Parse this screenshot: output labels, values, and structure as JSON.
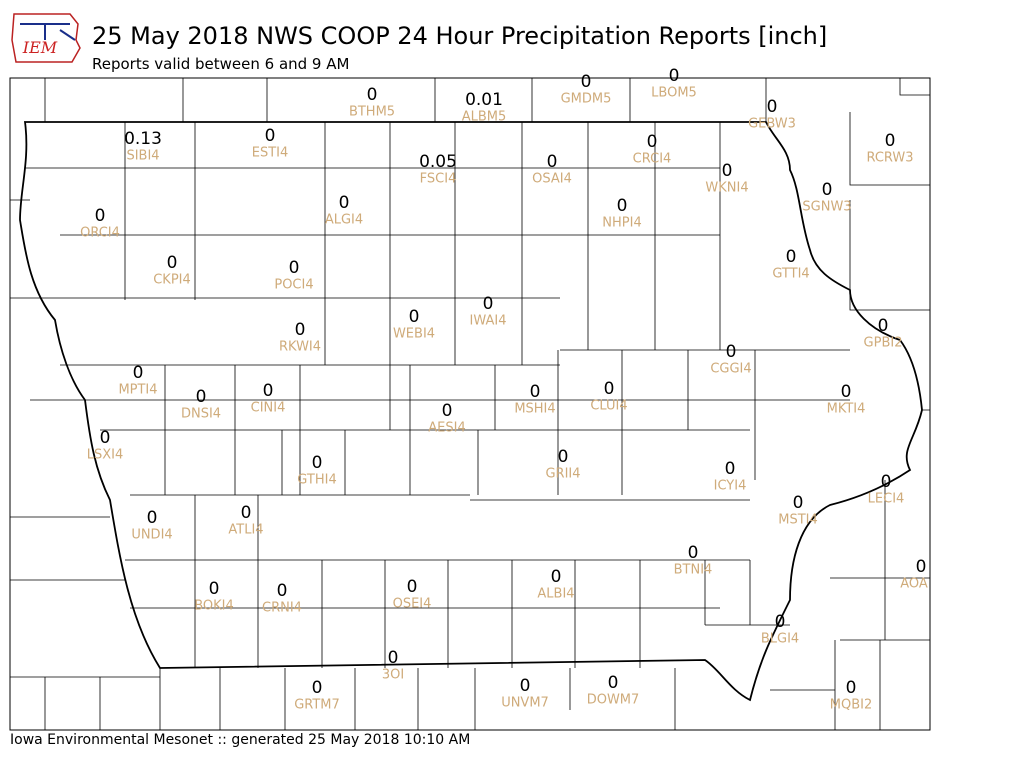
{
  "header": {
    "title": "25 May 2018 NWS COOP 24 Hour Precipitation Reports [inch]",
    "subtitle": "Reports valid between 6 and 9 AM",
    "logo": "IEM"
  },
  "stations": [
    {
      "value": "0",
      "id": "BTHM5"
    },
    {
      "value": "0.01",
      "id": "ALBM5"
    },
    {
      "value": "0",
      "id": "GMDM5"
    },
    {
      "value": "0",
      "id": "LBOM5"
    },
    {
      "value": "0",
      "id": "GEBW3"
    },
    {
      "value": "0",
      "id": "RCRW3"
    },
    {
      "value": "0.13",
      "id": "SIBI4"
    },
    {
      "value": "0",
      "id": "ESTI4"
    },
    {
      "value": "0.05",
      "id": "FSCI4"
    },
    {
      "value": "0",
      "id": "OSAI4"
    },
    {
      "value": "0",
      "id": "CRCI4"
    },
    {
      "value": "0",
      "id": "WKNI4"
    },
    {
      "value": "0",
      "id": "SGNW3"
    },
    {
      "value": "0",
      "id": "ORCI4"
    },
    {
      "value": "0",
      "id": "ALGI4"
    },
    {
      "value": "0",
      "id": "NHPI4"
    },
    {
      "value": "0",
      "id": "GTTI4"
    },
    {
      "value": "0",
      "id": "CKPI4"
    },
    {
      "value": "0",
      "id": "POCI4"
    },
    {
      "value": "0",
      "id": "IWAI4"
    },
    {
      "value": "0",
      "id": "WEBI4"
    },
    {
      "value": "0",
      "id": "RKWI4"
    },
    {
      "value": "0",
      "id": "GPBI2"
    },
    {
      "value": "0",
      "id": "CGGI4"
    },
    {
      "value": "0",
      "id": "MPTI4"
    },
    {
      "value": "0",
      "id": "DNSI4"
    },
    {
      "value": "0",
      "id": "CINI4"
    },
    {
      "value": "0",
      "id": "MSHI4"
    },
    {
      "value": "0",
      "id": "CLUI4"
    },
    {
      "value": "0",
      "id": "MKTI4"
    },
    {
      "value": "0",
      "id": "AESI4"
    },
    {
      "value": "0",
      "id": "LSXI4"
    },
    {
      "value": "0",
      "id": "GTHI4"
    },
    {
      "value": "0",
      "id": "GRII4"
    },
    {
      "value": "0",
      "id": "ICYI4"
    },
    {
      "value": "0",
      "id": "LECI4"
    },
    {
      "value": "0",
      "id": "MSTI4"
    },
    {
      "value": "0",
      "id": "UNDI4"
    },
    {
      "value": "0",
      "id": "ATLI4"
    },
    {
      "value": "0",
      "id": "BTNI4"
    },
    {
      "value": "0",
      "id": "AOA"
    },
    {
      "value": "0",
      "id": "ALBI4"
    },
    {
      "value": "0",
      "id": "BOKI4"
    },
    {
      "value": "0",
      "id": "CRNI4"
    },
    {
      "value": "0",
      "id": "OSEI4"
    },
    {
      "value": "0",
      "id": "BLGI4"
    },
    {
      "value": "0",
      "id": "3OI"
    },
    {
      "value": "0",
      "id": "GRTM7"
    },
    {
      "value": "0",
      "id": "UNVM7"
    },
    {
      "value": "0",
      "id": "DOWM7"
    },
    {
      "value": "0",
      "id": "MQBI2"
    }
  ],
  "footer": "Iowa Environmental Mesonet :: generated 25 May 2018 10:10 AM"
}
